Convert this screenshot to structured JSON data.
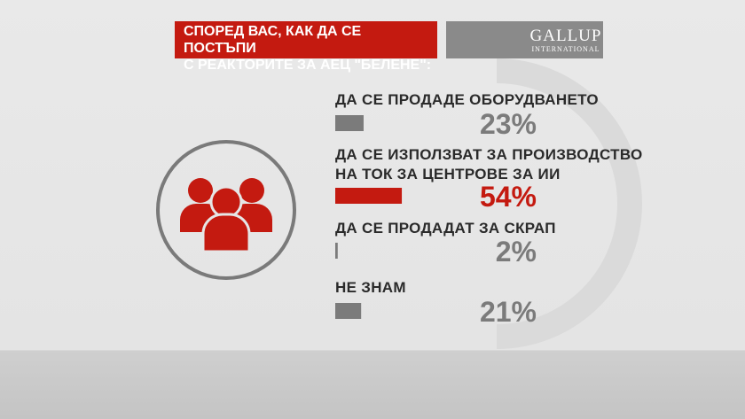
{
  "chart_data": {
    "type": "bar",
    "title": "СПОРЕД ВАС, КАК ДА СЕ ПОСТЪПИ\nС РЕАКТОРИТЕ ЗА АЕЦ \"БЕЛЕНЕ\":",
    "logo": "GALLUP",
    "logo_subtitle": "INTERNATIONAL",
    "categories": [
      "ДА СЕ ПРОДАДЕ ОБОРУДВАНЕТО",
      "ДА СЕ ИЗПОЛЗВАТ ЗА ПРОИЗВОДСТВО\nНА ТОК ЗА ЦЕНТРОВЕ ЗА ИИ",
      "ДА СЕ ПРОДАДАТ ЗА СКРАП",
      "НЕ ЗНАМ"
    ],
    "values": [
      23,
      54,
      2,
      21
    ],
    "value_labels": [
      "23%",
      "54%",
      "2%",
      "21%"
    ],
    "colors": [
      "#7b7b7b",
      "#c41a10",
      "#7b7b7b",
      "#7b7b7b"
    ]
  }
}
